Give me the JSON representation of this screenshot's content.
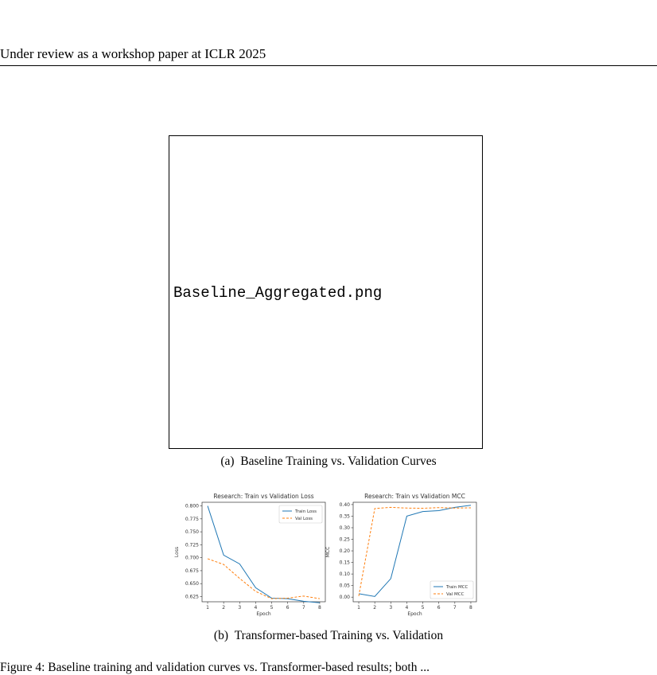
{
  "header": {
    "title": "Under review as a workshop paper at ICLR 2025"
  },
  "figure_a": {
    "placeholder_text": "Baseline_Aggregated.png",
    "caption": "(a) Baseline Training vs. Validation Curves"
  },
  "figure_b": {
    "caption": "(b) Transformer-based Training vs. Validation"
  },
  "body_fragment": "Figure 4: Baseline training and validation curves vs. Transformer-based results; both ...",
  "colors": {
    "train": "#1f77b4",
    "val": "#ff7f0e"
  },
  "chart_data": [
    {
      "type": "line",
      "title": "Research: Train vs Validation Loss",
      "xlabel": "Epoch",
      "ylabel": "Loss",
      "x": [
        1,
        2,
        3,
        4,
        5,
        6,
        7,
        8
      ],
      "xticks": [
        "1",
        "2",
        "3",
        "4",
        "5",
        "6",
        "7",
        "8"
      ],
      "yticks": [
        "0.625",
        "0.650",
        "0.675",
        "0.700",
        "0.725",
        "0.750",
        "0.775",
        "0.800"
      ],
      "ylim": [
        0.615,
        0.807
      ],
      "series": [
        {
          "name": "Train Loss",
          "style": "solid",
          "values": [
            0.8,
            0.705,
            0.688,
            0.642,
            0.622,
            0.621,
            0.616,
            0.613
          ]
        },
        {
          "name": "Val Loss",
          "style": "dashed",
          "values": [
            0.698,
            0.687,
            0.66,
            0.635,
            0.621,
            0.622,
            0.626,
            0.621
          ]
        }
      ],
      "legend": "top-right"
    },
    {
      "type": "line",
      "title": "Research: Train vs Validation MCC",
      "xlabel": "Epoch",
      "ylabel": "MCC",
      "x": [
        1,
        2,
        3,
        4,
        5,
        6,
        7,
        8
      ],
      "xticks": [
        "1",
        "2",
        "3",
        "4",
        "5",
        "6",
        "7",
        "8"
      ],
      "yticks": [
        "0.00",
        "0.05",
        "0.10",
        "0.15",
        "0.20",
        "0.25",
        "0.30",
        "0.35",
        "0.40"
      ],
      "ylim": [
        -0.02,
        0.41
      ],
      "series": [
        {
          "name": "Train MCC",
          "style": "solid",
          "values": [
            0.015,
            0.003,
            0.08,
            0.35,
            0.37,
            0.374,
            0.388,
            0.397
          ]
        },
        {
          "name": "Val MCC",
          "style": "dashed",
          "values": [
            0.005,
            0.383,
            0.388,
            0.385,
            0.384,
            0.387,
            0.385,
            0.386
          ]
        }
      ],
      "legend": "bottom-right"
    }
  ]
}
